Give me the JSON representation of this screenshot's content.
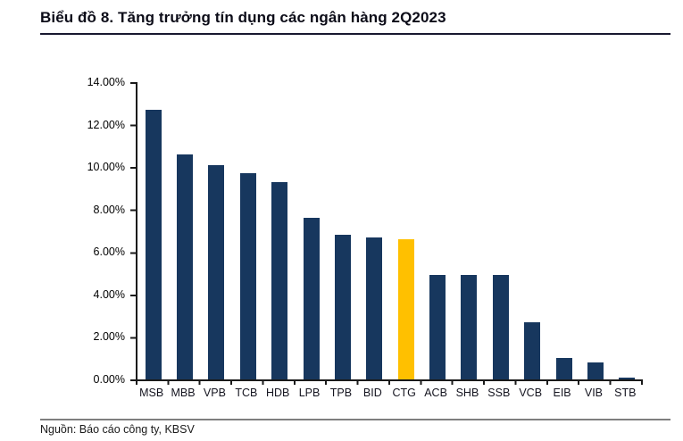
{
  "header": {
    "title": "Biểu đồ 8. Tăng trưởng tín dụng các ngân hàng 2Q2023"
  },
  "footer": {
    "source": "Nguồn: Báo cáo công ty, KBSV"
  },
  "colors": {
    "bar_navy": "#17375E",
    "bar_highlight_gold": "#FFC000",
    "axis": "#1a1a1a",
    "title_rule": "#181830",
    "source_rule": "#7f7f7f"
  },
  "chart_data": {
    "type": "bar",
    "title": "Biểu đồ 8. Tăng trưởng tín dụng các ngân hàng 2Q2023",
    "xlabel": "",
    "ylabel": "",
    "unit": "%",
    "categories": [
      "MSB",
      "MBB",
      "VPB",
      "TCB",
      "HDB",
      "LPB",
      "TPB",
      "BID",
      "CTG",
      "ACB",
      "SHB",
      "SSB",
      "VCB",
      "EIB",
      "VIB",
      "STB"
    ],
    "values": [
      12.7,
      10.6,
      10.1,
      9.7,
      9.3,
      7.6,
      6.8,
      6.7,
      6.6,
      4.9,
      4.9,
      4.9,
      2.7,
      1.0,
      0.8,
      0.1
    ],
    "ylim": [
      0,
      14
    ],
    "ytick_step": 2,
    "ytick_labels_top_to_bottom": [
      "14.00%",
      "12.00%",
      "10.00%",
      "8.00%",
      "6.00%",
      "4.00%",
      "2.00%",
      "0.00%"
    ],
    "grid": false,
    "legend": false,
    "bar_color": "#17375E",
    "highlight": {
      "category": "CTG",
      "index": 8,
      "color": "#FFC000"
    },
    "source": "Nguồn: Báo cáo công ty, KBSV"
  }
}
